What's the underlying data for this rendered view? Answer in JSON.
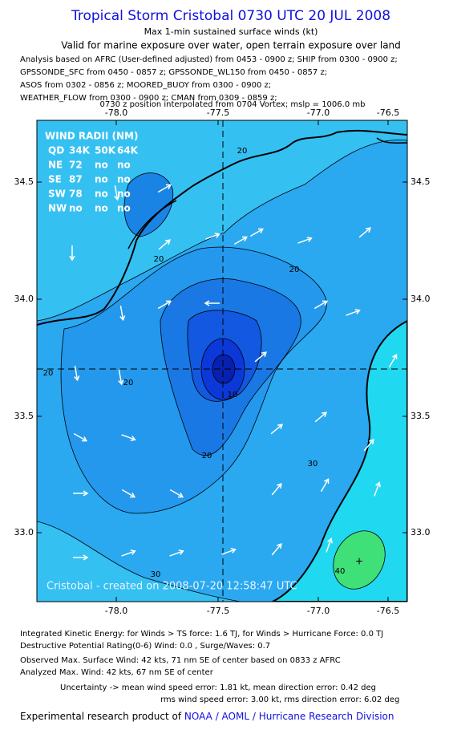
{
  "header": {
    "title": "Tropical Storm Cristobal 0730 UTC 20 JUL 2008",
    "subtitle": "Max 1-min sustained surface winds (kt)",
    "validity": "Valid for marine exposure over water, open terrain exposure over land",
    "analysis_lines": [
      "Analysis based on  AFRC (User-defined adjusted) from 0453 - 0900 z;  SHIP from 0300 - 0900 z;",
      "GPSSONDE_SFC from 0450 - 0857 z;  GPSSONDE_WL150 from 0450 - 0857 z;",
      "ASOS from 0302 - 0856 z;  MOORED_BUOY from 0300 - 0900 z;",
      "WEATHER_FLOW from 0300 - 0900 z;  CMAN from 0309 - 0859 z;"
    ],
    "position_note": "0730 z position interpolated from 0704 Vortex; mslp = 1006.0 mb"
  },
  "map": {
    "lon_labels": [
      "-78.0",
      "-77.5",
      "-77.0",
      "-76.5"
    ],
    "lat_labels": [
      "34.5",
      "34.0",
      "33.5",
      "33.0"
    ],
    "wind_radii": {
      "title": "WIND RADII (NM)",
      "header": [
        "QD",
        "34K",
        "50K",
        "64K"
      ],
      "rows": [
        [
          "NE",
          "72",
          "no",
          "no"
        ],
        [
          "SE",
          "87",
          "no",
          "no"
        ],
        [
          "SW",
          "78",
          "no",
          "no"
        ],
        [
          "NW",
          "no",
          "no",
          "no"
        ]
      ]
    },
    "contour_labels": [
      "20",
      "20",
      "20",
      "20",
      "20",
      "20",
      "10",
      "30",
      "30",
      "40"
    ],
    "watermark": "Cristobal - created on 2008-07-20 12:58:47 UTC"
  },
  "footer": {
    "lines": [
      "Integrated Kinetic Energy:  for Winds > TS force: 1.6 TJ,  for Winds > Hurricane Force: 0.0 TJ",
      "Destructive Potential Rating(0-6)   Wind: 0.0 , Surge/Waves: 0.7",
      "Observed Max. Surface Wind: 42 kts, 71 nm SE of center based on 0833 z AFRC",
      "Analyzed Max. Wind: 42 kts, 67 nm SE of center",
      "Uncertainty -> mean wind speed error: 1.81 kt,   mean direction error: 0.42 deg",
      "rms wind speed error: 3.00 kt,   rms direction error: 6.02 deg"
    ],
    "credit_prefix": "Experimental research product of ",
    "credit_link": "NOAA / AOML / Hurricane Research Division"
  }
}
